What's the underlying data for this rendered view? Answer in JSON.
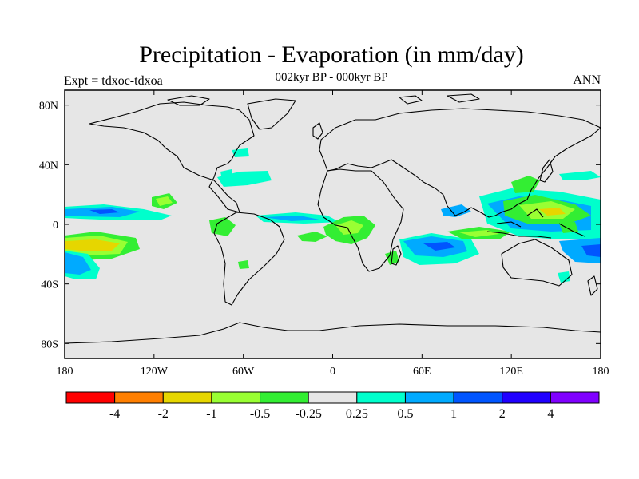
{
  "title": "Precipitation - Evaporation (in mm/day)",
  "subtitle": "002kyr BP - 000kyr BP",
  "left_label": "Expt = tdxoc-tdxoa",
  "right_label": "ANN",
  "axes": {
    "lat_ticks": [
      {
        "value": 80,
        "label": "80N"
      },
      {
        "value": 40,
        "label": "40N"
      },
      {
        "value": 0,
        "label": "0"
      },
      {
        "value": -40,
        "label": "40S"
      },
      {
        "value": -80,
        "label": "80S"
      }
    ],
    "lon_ticks": [
      {
        "value": -180,
        "label": "180"
      },
      {
        "value": -120,
        "label": "120W"
      },
      {
        "value": -60,
        "label": "60W"
      },
      {
        "value": 0,
        "label": "0"
      },
      {
        "value": 60,
        "label": "60E"
      },
      {
        "value": 120,
        "label": "120E"
      },
      {
        "value": 180,
        "label": "180"
      }
    ],
    "lon_range": [
      -180,
      180
    ],
    "lat_range": [
      -90,
      90
    ]
  },
  "colorbar": {
    "colors": [
      "#ff0000",
      "#ff7f00",
      "#e6d600",
      "#99ff33",
      "#33ee33",
      "#e6e6e6",
      "#00ffcc",
      "#00aaff",
      "#0055ff",
      "#2000ff",
      "#8000ff"
    ],
    "labels": [
      "-4",
      "-2",
      "-1",
      "-0.5",
      "-0.25",
      "0.25",
      "0.5",
      "1",
      "2",
      "4"
    ]
  },
  "colors": {
    "land_background": "#e6e6e6",
    "coastline": "#000000"
  }
}
